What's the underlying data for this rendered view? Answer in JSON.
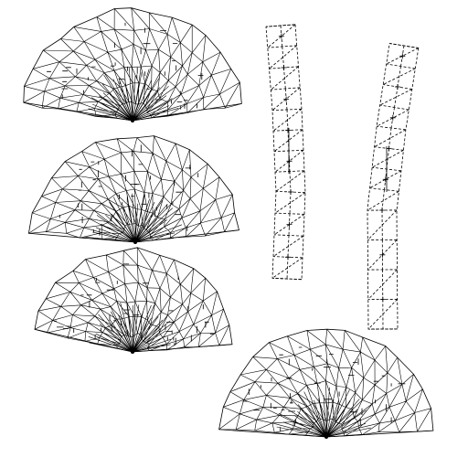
{
  "canvas": {
    "background": "#ffffff",
    "line_color": "#000000",
    "description_hidden": ""
  },
  "pieces": [
    {
      "kind": "fan",
      "label_icon": "uv-fan-island-icon",
      "index": 1
    },
    {
      "kind": "fan",
      "label_icon": "uv-fan-island-icon",
      "index": 2
    },
    {
      "kind": "fan",
      "label_icon": "uv-fan-island-icon",
      "index": 3
    },
    {
      "kind": "fan",
      "label_icon": "uv-fan-island-icon",
      "index": 4
    },
    {
      "kind": "strip",
      "label_icon": "uv-strip-island-icon",
      "index": 1
    },
    {
      "kind": "strip",
      "label_icon": "uv-strip-island-icon",
      "index": 2
    }
  ]
}
